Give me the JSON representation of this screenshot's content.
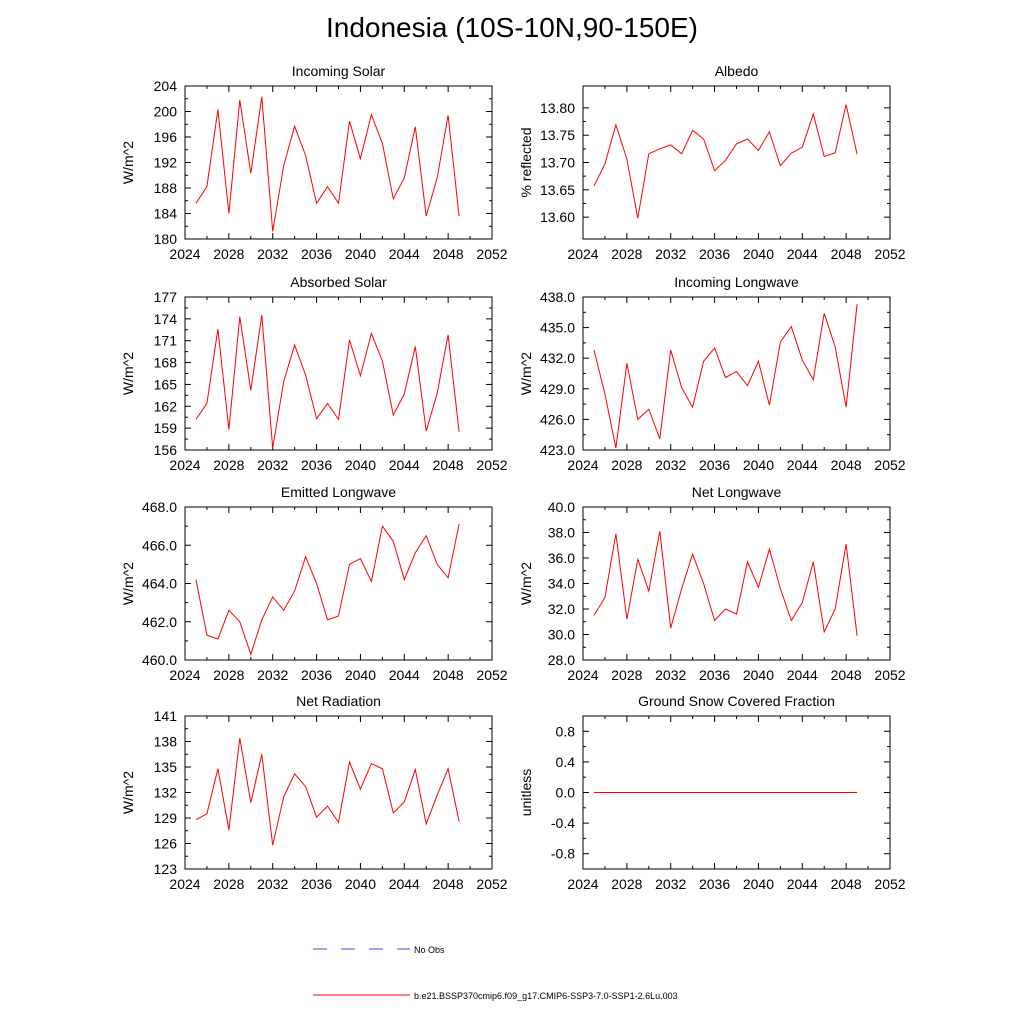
{
  "page": {
    "title": "Indonesia (10S-10N,90-150E)"
  },
  "legend": {
    "obs_label": "No Obs",
    "model_label": "b.e21.BSSP370cmip6.f09_g17.CMIP6-SSP3-7.0-SSP1-2.6Lu.003",
    "obs_color": "#4a4ad8",
    "model_color": "#ff0000"
  },
  "chart_data": [
    {
      "type": "line",
      "title": "Incoming Solar",
      "ylabel": "W/m^2",
      "xlim": [
        2024,
        2052
      ],
      "ylim": [
        180,
        204
      ],
      "xticks": [
        2024,
        2028,
        2032,
        2036,
        2040,
        2044,
        2048,
        2052
      ],
      "yticks": [
        180,
        184,
        188,
        192,
        196,
        200,
        204
      ],
      "ytick_labels": [
        "180",
        "184",
        "188",
        "192",
        "196",
        "200",
        "204"
      ],
      "x": [
        2025,
        2026,
        2027,
        2028,
        2029,
        2030,
        2031,
        2032,
        2033,
        2034,
        2035,
        2036,
        2037,
        2038,
        2039,
        2040,
        2041,
        2042,
        2043,
        2044,
        2045,
        2046,
        2047,
        2048,
        2049
      ],
      "series": [
        {
          "name": "b.e21.BSSP370cmip6.f09_g17.CMIP6-SSP3-7.0-SSP1-2.6Lu.003",
          "values": [
            185.6,
            188.2,
            200.3,
            184.0,
            201.8,
            190.3,
            202.3,
            181.2,
            191.5,
            197.7,
            193.1,
            185.6,
            188.2,
            185.6,
            198.5,
            192.6,
            199.5,
            195.0,
            186.3,
            189.6,
            197.6,
            183.6,
            189.6,
            199.4,
            183.6
          ]
        }
      ]
    },
    {
      "type": "line",
      "title": "Albedo",
      "ylabel": "% reflected",
      "xlim": [
        2024,
        2052
      ],
      "ylim": [
        13.56,
        13.84
      ],
      "xticks": [
        2024,
        2028,
        2032,
        2036,
        2040,
        2044,
        2048,
        2052
      ],
      "yticks": [
        13.6,
        13.65,
        13.7,
        13.75,
        13.8
      ],
      "ytick_labels": [
        "13.60",
        "13.65",
        "13.70",
        "13.75",
        "13.80"
      ],
      "x": [
        2025,
        2026,
        2027,
        2028,
        2029,
        2030,
        2031,
        2032,
        2033,
        2034,
        2035,
        2036,
        2037,
        2038,
        2039,
        2040,
        2041,
        2042,
        2043,
        2044,
        2045,
        2046,
        2047,
        2048,
        2049
      ],
      "series": [
        {
          "name": "b.e21.BSSP370cmip6.f09_g17.CMIP6-SSP3-7.0-SSP1-2.6Lu.003",
          "values": [
            13.657,
            13.697,
            13.769,
            13.706,
            13.598,
            13.716,
            13.725,
            13.732,
            13.716,
            13.759,
            13.743,
            13.685,
            13.704,
            13.734,
            13.743,
            13.722,
            13.756,
            13.694,
            13.717,
            13.728,
            13.789,
            13.711,
            13.718,
            13.806,
            13.715
          ]
        }
      ]
    },
    {
      "type": "line",
      "title": "Absorbed Solar",
      "ylabel": "W/m^2",
      "xlim": [
        2024,
        2052
      ],
      "ylim": [
        156,
        177
      ],
      "xticks": [
        2024,
        2028,
        2032,
        2036,
        2040,
        2044,
        2048,
        2052
      ],
      "yticks": [
        156,
        159,
        162,
        165,
        168,
        171,
        174,
        177
      ],
      "ytick_labels": [
        "156",
        "159",
        "162",
        "165",
        "168",
        "171",
        "174",
        "177"
      ],
      "x": [
        2025,
        2026,
        2027,
        2028,
        2029,
        2030,
        2031,
        2032,
        2033,
        2034,
        2035,
        2036,
        2037,
        2038,
        2039,
        2040,
        2041,
        2042,
        2043,
        2044,
        2045,
        2046,
        2047,
        2048,
        2049
      ],
      "series": [
        {
          "name": "b.e21.BSSP370cmip6.f09_g17.CMIP6-SSP3-7.0-SSP1-2.6Lu.003",
          "values": [
            160.2,
            162.4,
            172.6,
            158.8,
            174.3,
            164.2,
            174.5,
            156.3,
            165.4,
            170.4,
            166.3,
            160.3,
            162.4,
            160.2,
            171.1,
            166.2,
            172.0,
            168.2,
            160.8,
            163.7,
            170.2,
            158.6,
            163.8,
            171.8,
            158.5
          ]
        }
      ]
    },
    {
      "type": "line",
      "title": "Incoming Longwave",
      "ylabel": "W/m^2",
      "xlim": [
        2024,
        2052
      ],
      "ylim": [
        423,
        438
      ],
      "xticks": [
        2024,
        2028,
        2032,
        2036,
        2040,
        2044,
        2048,
        2052
      ],
      "yticks": [
        423,
        426,
        429,
        432,
        435,
        438
      ],
      "ytick_labels": [
        "423.0",
        "426.0",
        "429.0",
        "432.0",
        "435.0",
        "438.0"
      ],
      "x": [
        2025,
        2026,
        2027,
        2028,
        2029,
        2030,
        2031,
        2032,
        2033,
        2034,
        2035,
        2036,
        2037,
        2038,
        2039,
        2040,
        2041,
        2042,
        2043,
        2044,
        2045,
        2046,
        2047,
        2048,
        2049
      ],
      "series": [
        {
          "name": "b.e21.BSSP370cmip6.f09_g17.CMIP6-SSP3-7.0-SSP1-2.6Lu.003",
          "values": [
            432.8,
            428.5,
            423.2,
            431.5,
            426.0,
            427.0,
            424.1,
            432.8,
            429.1,
            427.2,
            431.7,
            433.0,
            430.1,
            430.7,
            429.3,
            431.7,
            427.4,
            433.6,
            435.1,
            431.8,
            429.9,
            436.4,
            433.1,
            427.2,
            437.3
          ]
        }
      ]
    },
    {
      "type": "line",
      "title": "Emitted Longwave",
      "ylabel": "W/m^2",
      "xlim": [
        2024,
        2052
      ],
      "ylim": [
        460,
        468
      ],
      "xticks": [
        2024,
        2028,
        2032,
        2036,
        2040,
        2044,
        2048,
        2052
      ],
      "yticks": [
        460,
        462,
        464,
        466,
        468
      ],
      "ytick_labels": [
        "460.0",
        "462.0",
        "464.0",
        "466.0",
        "468.0"
      ],
      "x": [
        2025,
        2026,
        2027,
        2028,
        2029,
        2030,
        2031,
        2032,
        2033,
        2034,
        2035,
        2036,
        2037,
        2038,
        2039,
        2040,
        2041,
        2042,
        2043,
        2044,
        2045,
        2046,
        2047,
        2048,
        2049
      ],
      "series": [
        {
          "name": "b.e21.BSSP370cmip6.f09_g17.CMIP6-SSP3-7.0-SSP1-2.6Lu.003",
          "values": [
            464.2,
            461.3,
            461.1,
            462.6,
            462.0,
            460.3,
            462.1,
            463.3,
            462.6,
            463.6,
            465.4,
            464.0,
            462.1,
            462.3,
            465.0,
            465.3,
            464.1,
            467.0,
            466.2,
            464.2,
            465.6,
            466.5,
            465.0,
            464.3,
            467.1
          ]
        }
      ]
    },
    {
      "type": "line",
      "title": "Net Longwave",
      "ylabel": "W/m^2",
      "xlim": [
        2024,
        2052
      ],
      "ylim": [
        28,
        40
      ],
      "xticks": [
        2024,
        2028,
        2032,
        2036,
        2040,
        2044,
        2048,
        2052
      ],
      "yticks": [
        28,
        30,
        32,
        34,
        36,
        38,
        40
      ],
      "ytick_labels": [
        "28.0",
        "30.0",
        "32.0",
        "34.0",
        "36.0",
        "38.0",
        "40.0"
      ],
      "x": [
        2025,
        2026,
        2027,
        2028,
        2029,
        2030,
        2031,
        2032,
        2033,
        2034,
        2035,
        2036,
        2037,
        2038,
        2039,
        2040,
        2041,
        2042,
        2043,
        2044,
        2045,
        2046,
        2047,
        2048,
        2049
      ],
      "series": [
        {
          "name": "b.e21.BSSP370cmip6.f09_g17.CMIP6-SSP3-7.0-SSP1-2.6Lu.003",
          "values": [
            31.5,
            32.9,
            37.9,
            31.2,
            35.9,
            33.4,
            38.1,
            30.5,
            33.6,
            36.3,
            34.0,
            31.1,
            32.0,
            31.6,
            35.7,
            33.7,
            36.7,
            33.6,
            31.1,
            32.5,
            35.7,
            30.2,
            32.0,
            37.1,
            29.9
          ]
        }
      ]
    },
    {
      "type": "line",
      "title": "Net Radiation",
      "ylabel": "W/m^2",
      "xlim": [
        2024,
        2052
      ],
      "ylim": [
        123,
        141
      ],
      "xticks": [
        2024,
        2028,
        2032,
        2036,
        2040,
        2044,
        2048,
        2052
      ],
      "yticks": [
        123,
        126,
        129,
        132,
        135,
        138,
        141
      ],
      "ytick_labels": [
        "123",
        "126",
        "129",
        "132",
        "135",
        "138",
        "141"
      ],
      "x": [
        2025,
        2026,
        2027,
        2028,
        2029,
        2030,
        2031,
        2032,
        2033,
        2034,
        2035,
        2036,
        2037,
        2038,
        2039,
        2040,
        2041,
        2042,
        2043,
        2044,
        2045,
        2046,
        2047,
        2048,
        2049
      ],
      "series": [
        {
          "name": "b.e21.BSSP370cmip6.f09_g17.CMIP6-SSP3-7.0-SSP1-2.6Lu.003",
          "values": [
            128.8,
            129.5,
            134.8,
            127.6,
            138.4,
            130.8,
            136.5,
            125.8,
            131.5,
            134.2,
            132.7,
            129.1,
            130.4,
            128.5,
            135.6,
            132.4,
            135.4,
            134.8,
            129.6,
            130.9,
            134.7,
            128.3,
            131.7,
            134.8,
            128.6
          ]
        }
      ]
    },
    {
      "type": "line",
      "title": "Ground Snow Covered Fraction",
      "ylabel": "unitless",
      "xlim": [
        2024,
        2052
      ],
      "ylim": [
        -1,
        1
      ],
      "xticks": [
        2024,
        2028,
        2032,
        2036,
        2040,
        2044,
        2048,
        2052
      ],
      "yticks": [
        -0.8,
        -0.4,
        0.0,
        0.4,
        0.8
      ],
      "ytick_labels": [
        "-0.8",
        "-0.4",
        "0.0",
        "0.4",
        "0.8"
      ],
      "x": [
        2025,
        2026,
        2027,
        2028,
        2029,
        2030,
        2031,
        2032,
        2033,
        2034,
        2035,
        2036,
        2037,
        2038,
        2039,
        2040,
        2041,
        2042,
        2043,
        2044,
        2045,
        2046,
        2047,
        2048,
        2049
      ],
      "series": [
        {
          "name": "b.e21.BSSP370cmip6.f09_g17.CMIP6-SSP3-7.0-SSP1-2.6Lu.003",
          "values": [
            0,
            0,
            0,
            0,
            0,
            0,
            0,
            0,
            0,
            0,
            0,
            0,
            0,
            0,
            0,
            0,
            0,
            0,
            0,
            0,
            0,
            0,
            0,
            0,
            0
          ]
        }
      ]
    }
  ]
}
